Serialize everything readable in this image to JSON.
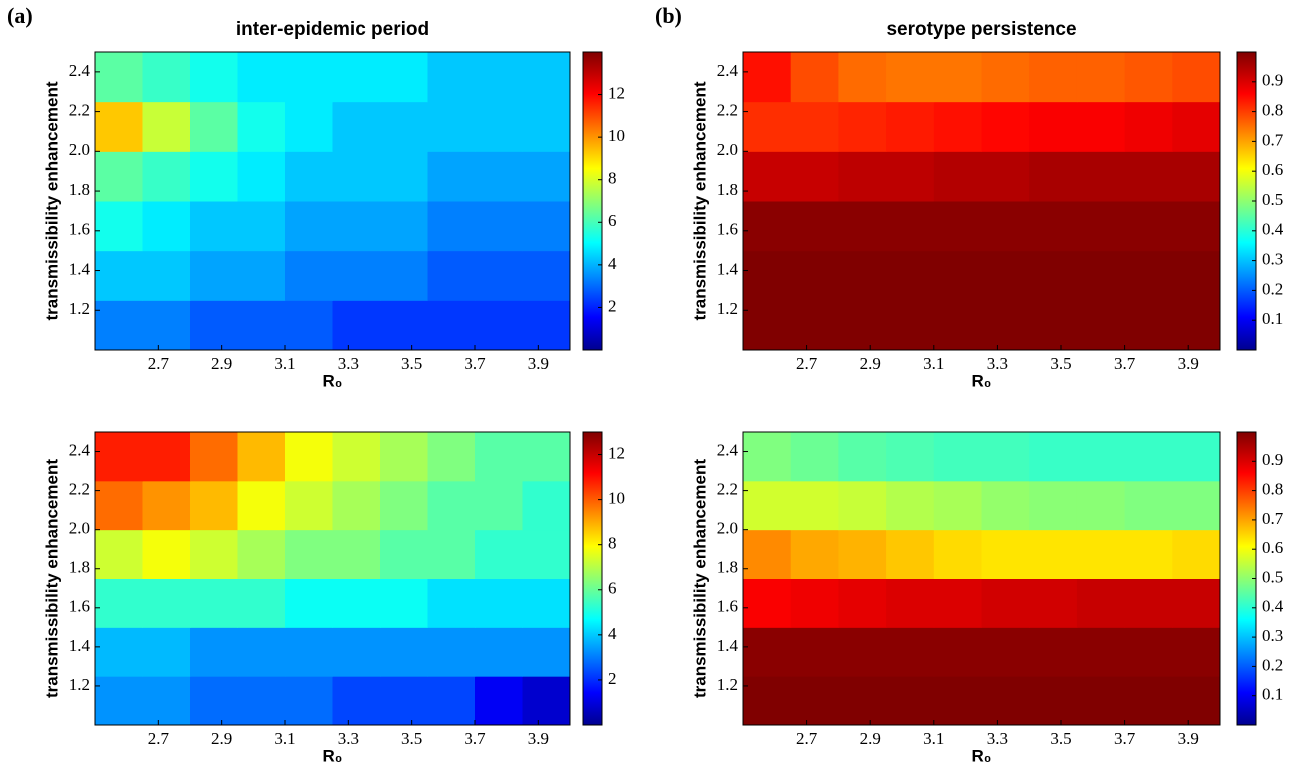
{
  "chart_data": [
    {
      "type": "heatmap",
      "panel_label": "(a)",
      "title": "inter-epidemic period",
      "x_label": "R₀",
      "y_label": "transmissibility enhancement",
      "colormap": "jet",
      "x": [
        2.575,
        2.725,
        2.875,
        3.025,
        3.175,
        3.325,
        3.475,
        3.625,
        3.775,
        3.925
      ],
      "y": [
        1.125,
        1.375,
        1.625,
        1.875,
        2.125,
        2.375
      ],
      "z": [
        [
          3.5,
          3.5,
          3,
          3,
          3,
          2.5,
          2.5,
          2.5,
          2.5,
          2.5
        ],
        [
          4.5,
          4.5,
          4,
          4,
          3.5,
          3.5,
          3.5,
          3,
          3,
          3
        ],
        [
          5.5,
          5,
          4.5,
          4.5,
          4,
          4,
          4,
          3.5,
          3.5,
          3.5
        ],
        [
          6.5,
          6,
          5.5,
          5,
          4.5,
          4.5,
          4.5,
          4,
          4,
          4
        ],
        [
          9.5,
          8,
          6.5,
          5.5,
          5,
          4.5,
          4.5,
          4.5,
          4.5,
          4.5
        ],
        [
          6.5,
          6,
          5.5,
          5,
          5,
          5,
          5,
          4.5,
          4.5,
          4.5
        ]
      ],
      "xlim": [
        2.5,
        4.0
      ],
      "ylim": [
        1.0,
        2.5
      ],
      "clim": [
        0,
        14
      ],
      "xticks": [
        2.7,
        2.9,
        3.1,
        3.3,
        3.5,
        3.7,
        3.9
      ],
      "yticks": [
        1.2,
        1.4,
        1.6,
        1.8,
        {
          "value": 2,
          "label": "2.0"
        },
        2.2,
        2.4
      ],
      "colorbar_ticks": [
        2,
        4,
        6,
        8,
        10,
        12
      ]
    },
    {
      "type": "heatmap",
      "panel_label": "(b)",
      "title": "serotype persistence",
      "x_label": "R₀",
      "y_label": "transmissibility enhancement",
      "colormap": "jet",
      "x": [
        2.575,
        2.725,
        2.875,
        3.025,
        3.175,
        3.325,
        3.475,
        3.625,
        3.775,
        3.925
      ],
      "y": [
        1.125,
        1.375,
        1.625,
        1.875,
        2.125,
        2.375
      ],
      "z": [
        [
          1,
          1,
          1,
          1,
          1,
          1,
          1,
          1,
          1,
          1
        ],
        [
          1,
          1,
          1,
          1,
          1,
          1,
          1,
          1,
          1,
          1
        ],
        [
          0.99,
          0.99,
          0.99,
          0.99,
          0.99,
          0.99,
          0.99,
          0.99,
          0.99,
          0.99
        ],
        [
          0.93,
          0.93,
          0.94,
          0.94,
          0.95,
          0.95,
          0.96,
          0.96,
          0.96,
          0.96
        ],
        [
          0.83,
          0.83,
          0.84,
          0.85,
          0.86,
          0.87,
          0.88,
          0.88,
          0.89,
          0.9
        ],
        [
          0.86,
          0.8,
          0.77,
          0.76,
          0.76,
          0.77,
          0.78,
          0.78,
          0.79,
          0.8
        ]
      ],
      "xlim": [
        2.5,
        4.0
      ],
      "ylim": [
        1.0,
        2.5
      ],
      "clim": [
        0,
        1
      ],
      "xticks": [
        2.7,
        2.9,
        3.1,
        3.3,
        3.5,
        3.7,
        3.9
      ],
      "yticks": [
        1.2,
        1.4,
        1.6,
        1.8,
        {
          "value": 2,
          "label": "2.0"
        },
        2.2,
        2.4
      ],
      "colorbar_ticks": [
        0.1,
        0.2,
        0.3,
        0.4,
        0.5,
        0.6,
        0.7,
        0.8,
        0.9
      ]
    },
    {
      "type": "heatmap",
      "x_label": "R₀",
      "y_label": "transmissibility enhancement",
      "colormap": "jet",
      "x": [
        2.575,
        2.725,
        2.875,
        3.025,
        3.175,
        3.325,
        3.475,
        3.625,
        3.775,
        3.925
      ],
      "y": [
        1.125,
        1.375,
        1.625,
        1.875,
        2.125,
        2.375
      ],
      "z": [
        [
          3.5,
          3.5,
          3,
          3,
          3,
          2.5,
          2.5,
          2.5,
          1.5,
          1
        ],
        [
          4,
          4,
          3.5,
          3.5,
          3.5,
          3.5,
          3.5,
          3.5,
          3.5,
          3.5
        ],
        [
          5.5,
          5.5,
          5.5,
          5.5,
          5,
          5,
          5,
          4.5,
          4.5,
          4.5
        ],
        [
          7.5,
          8,
          7.5,
          7,
          6.5,
          6.5,
          6,
          6,
          5.5,
          5.5
        ],
        [
          10,
          9.5,
          9,
          8,
          7.5,
          7,
          6.5,
          6,
          6,
          5.5
        ],
        [
          11,
          11,
          10,
          9,
          8,
          7.5,
          7,
          6.5,
          6,
          6
        ]
      ],
      "xlim": [
        2.5,
        4.0
      ],
      "ylim": [
        1.0,
        2.5
      ],
      "clim": [
        0,
        13
      ],
      "xticks": [
        2.7,
        2.9,
        3.1,
        3.3,
        3.5,
        3.7,
        3.9
      ],
      "yticks": [
        1.2,
        1.4,
        1.6,
        1.8,
        {
          "value": 2,
          "label": "2.0"
        },
        2.2,
        2.4
      ],
      "colorbar_ticks": [
        2,
        4,
        6,
        8,
        10,
        12
      ]
    },
    {
      "type": "heatmap",
      "x_label": "R₀",
      "y_label": "transmissibility enhancement",
      "colormap": "jet",
      "x": [
        2.575,
        2.725,
        2.875,
        3.025,
        3.175,
        3.325,
        3.475,
        3.625,
        3.775,
        3.925
      ],
      "y": [
        1.125,
        1.375,
        1.625,
        1.875,
        2.125,
        2.375
      ],
      "z": [
        [
          1,
          1,
          1,
          1,
          1,
          1,
          1,
          1,
          1,
          1
        ],
        [
          0.99,
          0.99,
          0.99,
          0.99,
          0.99,
          0.99,
          0.99,
          0.99,
          0.99,
          0.99
        ],
        [
          0.88,
          0.89,
          0.9,
          0.91,
          0.91,
          0.92,
          0.92,
          0.93,
          0.93,
          0.93
        ],
        [
          0.74,
          0.71,
          0.7,
          0.68,
          0.66,
          0.65,
          0.65,
          0.65,
          0.65,
          0.66
        ],
        [
          0.58,
          0.58,
          0.57,
          0.55,
          0.54,
          0.52,
          0.51,
          0.51,
          0.5,
          0.5
        ],
        [
          0.5,
          0.48,
          0.46,
          0.45,
          0.44,
          0.44,
          0.43,
          0.43,
          0.43,
          0.43
        ]
      ],
      "xlim": [
        2.5,
        4.0
      ],
      "ylim": [
        1.0,
        2.5
      ],
      "clim": [
        0,
        1
      ],
      "xticks": [
        2.7,
        2.9,
        3.1,
        3.3,
        3.5,
        3.7,
        3.9
      ],
      "yticks": [
        1.2,
        1.4,
        1.6,
        1.8,
        {
          "value": 2,
          "label": "2.0"
        },
        2.2,
        2.4
      ],
      "colorbar_ticks": [
        0.1,
        0.2,
        0.3,
        0.4,
        0.5,
        0.6,
        0.7,
        0.8,
        0.9
      ]
    }
  ]
}
